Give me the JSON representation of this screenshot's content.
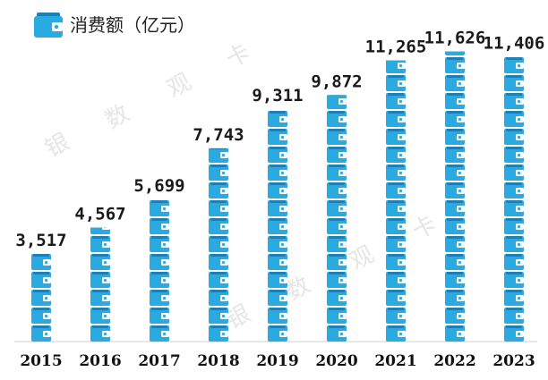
{
  "legend": {
    "label": "消费额（亿元）",
    "icon": "wallet-icon"
  },
  "watermark": {
    "chars": [
      "银",
      "数",
      "观",
      "卡"
    ]
  },
  "colors": {
    "wallet": "#29ABE2",
    "wallet_dark": "#1C7FB5",
    "axis": "#d0d0d0"
  },
  "chart_data": {
    "type": "bar",
    "categories": [
      "2015",
      "2016",
      "2017",
      "2018",
      "2019",
      "2020",
      "2021",
      "2022",
      "2023"
    ],
    "series": [
      {
        "values": [
          3517,
          4567,
          5699,
          7743,
          9311,
          9872,
          11265,
          11626,
          11406
        ]
      }
    ],
    "value_labels": [
      "3,517",
      "4,567",
      "5,699",
      "7,743",
      "9,311",
      "9,872",
      "11,265",
      "11,626",
      "11,406"
    ],
    "ylim": [
      0,
      12000
    ],
    "grid": false,
    "legend_position": "top-left"
  }
}
